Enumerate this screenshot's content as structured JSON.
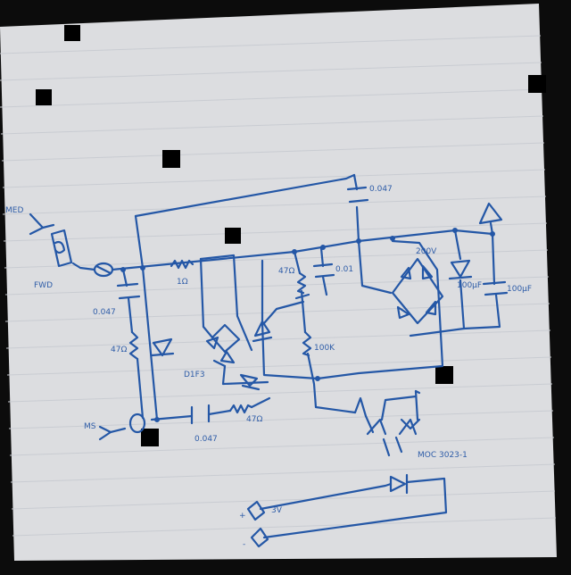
{
  "diagram": {
    "labels": {
      "top_left_terminal": "MED",
      "fuse_label": "FWD",
      "bottom_left_terminal": "MS",
      "resistor_top": "1Ω",
      "cap_left": "0.047",
      "res_left": "47Ω",
      "diode_left": "D1F3",
      "cap_bottom": "0.047",
      "res_bottom": "47Ω",
      "res_vertical_top": "47Ω",
      "cap_center": "0.01",
      "res_center": "100K",
      "cap_top_right": "0.047",
      "bridge_label": "200V",
      "cap_right": "100μF",
      "cap_far_right": "100μF",
      "optocoupler": "MOC 3023-1",
      "dc_plus": "+",
      "dc_minus": "-",
      "dc_label": "3V"
    },
    "colors": {
      "ink": "#2457a6",
      "paper": "#dcdde0"
    }
  }
}
